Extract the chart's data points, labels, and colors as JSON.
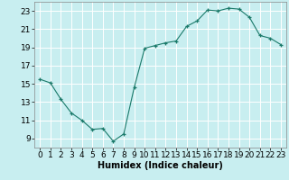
{
  "x": [
    0,
    1,
    2,
    3,
    4,
    5,
    6,
    7,
    8,
    9,
    10,
    11,
    12,
    13,
    14,
    15,
    16,
    17,
    18,
    19,
    20,
    21,
    22,
    23
  ],
  "y": [
    15.5,
    15.1,
    13.3,
    11.8,
    11.0,
    10.0,
    10.1,
    8.7,
    9.5,
    14.6,
    18.9,
    19.2,
    19.5,
    19.7,
    21.3,
    21.9,
    23.1,
    23.0,
    23.3,
    23.2,
    22.3,
    20.3,
    20.0,
    19.3
  ],
  "xlabel": "Humidex (Indice chaleur)",
  "ylim": [
    8,
    24
  ],
  "xlim": [
    -0.5,
    23.5
  ],
  "yticks": [
    9,
    11,
    13,
    15,
    17,
    19,
    21,
    23
  ],
  "xticks": [
    0,
    1,
    2,
    3,
    4,
    5,
    6,
    7,
    8,
    9,
    10,
    11,
    12,
    13,
    14,
    15,
    16,
    17,
    18,
    19,
    20,
    21,
    22,
    23
  ],
  "line_color": "#1a7a6a",
  "marker_color": "#1a7a6a",
  "bg_color": "#c8eef0",
  "grid_color": "#ffffff",
  "xlabel_fontsize": 7,
  "tick_fontsize": 6.5
}
